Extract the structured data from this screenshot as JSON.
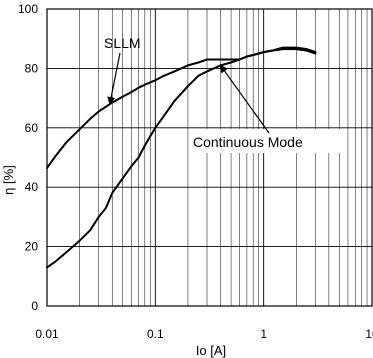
{
  "chart_data": {
    "type": "line",
    "title": "",
    "xlabel": "Io [A]",
    "ylabel": "η [%]",
    "x_scale": "log",
    "xlim": [
      0.01,
      10
    ],
    "ylim": [
      0,
      100
    ],
    "x_ticks": [
      {
        "value": 0.01,
        "label": "0.01"
      },
      {
        "value": 0.1,
        "label": "0.1"
      },
      {
        "value": 1,
        "label": "1"
      },
      {
        "value": 10,
        "label": "10"
      }
    ],
    "y_ticks": [
      {
        "value": 0,
        "label": "0"
      },
      {
        "value": 20,
        "label": "20"
      },
      {
        "value": 40,
        "label": "40"
      },
      {
        "value": 60,
        "label": "60"
      },
      {
        "value": 80,
        "label": "80"
      },
      {
        "value": 100,
        "label": "100"
      }
    ],
    "grid": true,
    "series": [
      {
        "name": "SLLM",
        "points": [
          [
            0.01,
            46.5
          ],
          [
            0.012,
            50.5
          ],
          [
            0.015,
            55
          ],
          [
            0.02,
            59.5
          ],
          [
            0.025,
            63
          ],
          [
            0.03,
            65.5
          ],
          [
            0.04,
            68.5
          ],
          [
            0.05,
            70.5
          ],
          [
            0.06,
            72
          ],
          [
            0.07,
            73.5
          ],
          [
            0.08,
            74.5
          ],
          [
            0.1,
            76
          ],
          [
            0.12,
            77.5
          ],
          [
            0.15,
            79
          ],
          [
            0.2,
            81
          ],
          [
            0.25,
            82
          ],
          [
            0.3,
            83
          ],
          [
            0.4,
            83
          ],
          [
            0.5,
            83
          ],
          [
            0.6,
            83
          ],
          [
            0.7,
            84
          ],
          [
            0.8,
            84.5
          ],
          [
            1.0,
            85.5
          ],
          [
            1.2,
            86
          ],
          [
            1.5,
            86.5
          ],
          [
            2.0,
            86.5
          ],
          [
            2.5,
            86
          ],
          [
            3.0,
            85
          ]
        ]
      },
      {
        "name": "Continuous Mode",
        "points": [
          [
            0.01,
            13
          ],
          [
            0.012,
            15
          ],
          [
            0.015,
            18
          ],
          [
            0.02,
            22
          ],
          [
            0.025,
            25.5
          ],
          [
            0.03,
            30
          ],
          [
            0.035,
            33
          ],
          [
            0.04,
            38
          ],
          [
            0.05,
            43
          ],
          [
            0.06,
            47
          ],
          [
            0.07,
            50
          ],
          [
            0.08,
            54
          ],
          [
            0.1,
            60
          ],
          [
            0.12,
            64
          ],
          [
            0.15,
            69
          ],
          [
            0.2,
            74
          ],
          [
            0.25,
            77.5
          ],
          [
            0.3,
            79
          ],
          [
            0.4,
            81
          ],
          [
            0.5,
            82
          ],
          [
            0.6,
            83
          ],
          [
            0.7,
            84
          ],
          [
            0.8,
            84.5
          ],
          [
            1.0,
            85.5
          ],
          [
            1.2,
            86
          ],
          [
            1.5,
            87
          ],
          [
            2.0,
            87
          ],
          [
            2.5,
            86.5
          ],
          [
            3.0,
            85.5
          ]
        ]
      }
    ],
    "annotations": [
      {
        "text": "SLLM",
        "target_series": "SLLM",
        "target_x": 0.038,
        "target_y": 68
      },
      {
        "text": "Continuous Mode",
        "target_series": "Continuous Mode",
        "target_x": 0.4,
        "target_y": 81
      }
    ]
  }
}
